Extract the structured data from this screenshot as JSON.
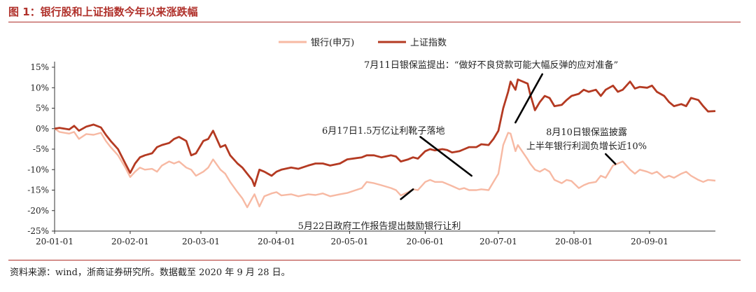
{
  "figure_title": "图 1：银行股和上证指数今年以来涨跌幅",
  "source_note": "资料来源：wind，浙商证券研究所。数据截至 2020 年 9 月 28 日。",
  "colors": {
    "bank": "#f7b9a3",
    "index": "#b43a22",
    "accent": "#b0312b"
  },
  "chart_data": {
    "type": "line",
    "title": "",
    "xlabel": "",
    "ylabel": "",
    "ylim": [
      -25,
      15
    ],
    "yticks": [
      15,
      10,
      5,
      0,
      -5,
      -10,
      -15,
      -20,
      -25
    ],
    "ytick_labels": [
      "15%",
      "10%",
      "5%",
      "0%",
      "-5%",
      "-10%",
      "-15%",
      "-20%",
      "-25%"
    ],
    "xticks": [
      "2020-01-01",
      "2020-02-01",
      "2020-03-01",
      "2020-04-01",
      "2020-05-01",
      "2020-06-01",
      "2020-07-01",
      "2020-08-01",
      "2020-09-01"
    ],
    "xtick_labels": [
      "20-01-01",
      "20-02-01",
      "20-03-01",
      "20-04-01",
      "20-05-01",
      "20-06-01",
      "20-07-01",
      "20-08-01",
      "20-09-01"
    ],
    "xlim": [
      "2020-01-01",
      "2020-09-28"
    ],
    "grid": false,
    "legend_position": "top-center",
    "series": [
      {
        "name": "银行(申万)",
        "points": [
          [
            "2020-01-01",
            0
          ],
          [
            "2020-01-03",
            -0.8
          ],
          [
            "2020-01-07",
            -1.2
          ],
          [
            "2020-01-09",
            -0.8
          ],
          [
            "2020-01-11",
            -2.5
          ],
          [
            "2020-01-14",
            -1.3
          ],
          [
            "2020-01-17",
            -1.5
          ],
          [
            "2020-01-20",
            -1.0
          ],
          [
            "2020-01-22",
            -3.0
          ],
          [
            "2020-01-24",
            -4.5
          ],
          [
            "2020-01-27",
            -6.5
          ],
          [
            "2020-01-30",
            -9.5
          ],
          [
            "2020-02-01",
            -11.8
          ],
          [
            "2020-02-03",
            -10.5
          ],
          [
            "2020-02-05",
            -9.5
          ],
          [
            "2020-02-07",
            -10.0
          ],
          [
            "2020-02-10",
            -9.8
          ],
          [
            "2020-02-12",
            -10.5
          ],
          [
            "2020-02-14",
            -9.0
          ],
          [
            "2020-02-17",
            -8.0
          ],
          [
            "2020-02-19",
            -8.5
          ],
          [
            "2020-02-21",
            -8.0
          ],
          [
            "2020-02-24",
            -9.5
          ],
          [
            "2020-02-26",
            -10.0
          ],
          [
            "2020-02-28",
            -11.5
          ],
          [
            "2020-03-02",
            -10.5
          ],
          [
            "2020-03-04",
            -9.5
          ],
          [
            "2020-03-06",
            -7.5
          ],
          [
            "2020-03-09",
            -10.0
          ],
          [
            "2020-03-11",
            -11.0
          ],
          [
            "2020-03-13",
            -13.0
          ],
          [
            "2020-03-16",
            -15.5
          ],
          [
            "2020-03-18",
            -17.0
          ],
          [
            "2020-03-20",
            -19.2
          ],
          [
            "2020-03-22",
            -17.0
          ],
          [
            "2020-03-23",
            -16.0
          ],
          [
            "2020-03-25",
            -19.0
          ],
          [
            "2020-03-27",
            -16.5
          ],
          [
            "2020-03-30",
            -15.8
          ],
          [
            "2020-04-01",
            -15.5
          ],
          [
            "2020-04-03",
            -16.3
          ],
          [
            "2020-04-07",
            -16.0
          ],
          [
            "2020-04-10",
            -16.5
          ],
          [
            "2020-04-14",
            -16.0
          ],
          [
            "2020-04-17",
            -16.2
          ],
          [
            "2020-04-20",
            -15.8
          ],
          [
            "2020-04-23",
            -16.5
          ],
          [
            "2020-04-27",
            -16.0
          ],
          [
            "2020-04-30",
            -15.7
          ],
          [
            "2020-05-06",
            -14.5
          ],
          [
            "2020-05-08",
            -13.0
          ],
          [
            "2020-05-11",
            -13.3
          ],
          [
            "2020-05-14",
            -13.8
          ],
          [
            "2020-05-18",
            -14.5
          ],
          [
            "2020-05-20",
            -15.0
          ],
          [
            "2020-05-22",
            -16.3
          ],
          [
            "2020-05-25",
            -15.5
          ],
          [
            "2020-05-27",
            -14.8
          ],
          [
            "2020-05-29",
            -15.0
          ],
          [
            "2020-06-01",
            -13.0
          ],
          [
            "2020-06-03",
            -12.5
          ],
          [
            "2020-06-05",
            -13.0
          ],
          [
            "2020-06-08",
            -13.0
          ],
          [
            "2020-06-10",
            -13.5
          ],
          [
            "2020-06-12",
            -14.0
          ],
          [
            "2020-06-15",
            -14.8
          ],
          [
            "2020-06-17",
            -14.5
          ],
          [
            "2020-06-19",
            -15.0
          ],
          [
            "2020-06-22",
            -15.0
          ],
          [
            "2020-06-24",
            -14.8
          ],
          [
            "2020-06-27",
            -15.0
          ],
          [
            "2020-06-29",
            -13.0
          ],
          [
            "2020-07-01",
            -11.0
          ],
          [
            "2020-07-03",
            -4.0
          ],
          [
            "2020-07-05",
            -1.0
          ],
          [
            "2020-07-06",
            -1.2
          ],
          [
            "2020-07-08",
            -5.5
          ],
          [
            "2020-07-09",
            -4.0
          ],
          [
            "2020-07-13",
            -7.5
          ],
          [
            "2020-07-14",
            -8.5
          ],
          [
            "2020-07-16",
            -10.0
          ],
          [
            "2020-07-18",
            -10.5
          ],
          [
            "2020-07-20",
            -9.8
          ],
          [
            "2020-07-22",
            -10.5
          ],
          [
            "2020-07-24",
            -12.5
          ],
          [
            "2020-07-27",
            -13.3
          ],
          [
            "2020-07-29",
            -12.5
          ],
          [
            "2020-07-31",
            -12.8
          ],
          [
            "2020-08-03",
            -14.5
          ],
          [
            "2020-08-05",
            -13.8
          ],
          [
            "2020-08-07",
            -13.3
          ],
          [
            "2020-08-10",
            -13.0
          ],
          [
            "2020-08-12",
            -11.5
          ],
          [
            "2020-08-14",
            -12.0
          ],
          [
            "2020-08-17",
            -9.0
          ],
          [
            "2020-08-19",
            -8.5
          ],
          [
            "2020-08-21",
            -8.0
          ],
          [
            "2020-08-24",
            -10.0
          ],
          [
            "2020-08-26",
            -11.0
          ],
          [
            "2020-08-28",
            -10.0
          ],
          [
            "2020-08-31",
            -10.5
          ],
          [
            "2020-09-02",
            -11.0
          ],
          [
            "2020-09-04",
            -10.5
          ],
          [
            "2020-09-07",
            -12.0
          ],
          [
            "2020-09-09",
            -11.5
          ],
          [
            "2020-09-11",
            -12.0
          ],
          [
            "2020-09-14",
            -11.0
          ],
          [
            "2020-09-16",
            -10.5
          ],
          [
            "2020-09-18",
            -11.5
          ],
          [
            "2020-09-21",
            -12.5
          ],
          [
            "2020-09-23",
            -13.0
          ],
          [
            "2020-09-25",
            -12.5
          ],
          [
            "2020-09-28",
            -12.7
          ]
        ]
      },
      {
        "name": "上证指数",
        "points": [
          [
            "2020-01-01",
            0
          ],
          [
            "2020-01-03",
            0.2
          ],
          [
            "2020-01-07",
            -0.2
          ],
          [
            "2020-01-09",
            0.7
          ],
          [
            "2020-01-11",
            -0.5
          ],
          [
            "2020-01-14",
            0.5
          ],
          [
            "2020-01-17",
            1.0
          ],
          [
            "2020-01-20",
            0.3
          ],
          [
            "2020-01-22",
            -1.5
          ],
          [
            "2020-01-24",
            -3.0
          ],
          [
            "2020-01-27",
            -5.0
          ],
          [
            "2020-01-30",
            -8.5
          ],
          [
            "2020-02-01",
            -10.8
          ],
          [
            "2020-02-03",
            -8.5
          ],
          [
            "2020-02-05",
            -7.0
          ],
          [
            "2020-02-07",
            -6.5
          ],
          [
            "2020-02-10",
            -6.0
          ],
          [
            "2020-02-12",
            -4.5
          ],
          [
            "2020-02-14",
            -4.0
          ],
          [
            "2020-02-17",
            -3.5
          ],
          [
            "2020-02-19",
            -2.5
          ],
          [
            "2020-02-21",
            -2.0
          ],
          [
            "2020-02-24",
            -3.0
          ],
          [
            "2020-02-26",
            -6.5
          ],
          [
            "2020-02-28",
            -6.0
          ],
          [
            "2020-03-02",
            -3.0
          ],
          [
            "2020-03-04",
            -2.5
          ],
          [
            "2020-03-06",
            -0.5
          ],
          [
            "2020-03-09",
            -4.5
          ],
          [
            "2020-03-11",
            -4.0
          ],
          [
            "2020-03-13",
            -6.5
          ],
          [
            "2020-03-16",
            -8.5
          ],
          [
            "2020-03-18",
            -9.5
          ],
          [
            "2020-03-20",
            -11.0
          ],
          [
            "2020-03-22",
            -12.5
          ],
          [
            "2020-03-23",
            -14.0
          ],
          [
            "2020-03-25",
            -10.0
          ],
          [
            "2020-03-27",
            -10.5
          ],
          [
            "2020-03-30",
            -11.5
          ],
          [
            "2020-04-01",
            -10.5
          ],
          [
            "2020-04-03",
            -10.0
          ],
          [
            "2020-04-07",
            -9.5
          ],
          [
            "2020-04-10",
            -9.8
          ],
          [
            "2020-04-14",
            -9.0
          ],
          [
            "2020-04-17",
            -8.5
          ],
          [
            "2020-04-20",
            -8.5
          ],
          [
            "2020-04-23",
            -9.0
          ],
          [
            "2020-04-27",
            -8.5
          ],
          [
            "2020-04-30",
            -7.5
          ],
          [
            "2020-05-06",
            -7.0
          ],
          [
            "2020-05-08",
            -6.5
          ],
          [
            "2020-05-11",
            -6.5
          ],
          [
            "2020-05-14",
            -7.0
          ],
          [
            "2020-05-18",
            -6.5
          ],
          [
            "2020-05-20",
            -6.8
          ],
          [
            "2020-05-22",
            -8.0
          ],
          [
            "2020-05-25",
            -7.5
          ],
          [
            "2020-05-27",
            -7.0
          ],
          [
            "2020-05-29",
            -7.3
          ],
          [
            "2020-06-01",
            -5.5
          ],
          [
            "2020-06-03",
            -5.0
          ],
          [
            "2020-06-05",
            -5.3
          ],
          [
            "2020-06-08",
            -5.0
          ],
          [
            "2020-06-10",
            -5.2
          ],
          [
            "2020-06-12",
            -5.8
          ],
          [
            "2020-06-15",
            -5.5
          ],
          [
            "2020-06-17",
            -5.0
          ],
          [
            "2020-06-19",
            -4.5
          ],
          [
            "2020-06-22",
            -4.5
          ],
          [
            "2020-06-24",
            -3.8
          ],
          [
            "2020-06-27",
            -4.0
          ],
          [
            "2020-06-29",
            -2.5
          ],
          [
            "2020-07-01",
            -0.5
          ],
          [
            "2020-07-03",
            5.0
          ],
          [
            "2020-07-05",
            9.0
          ],
          [
            "2020-07-06",
            11.5
          ],
          [
            "2020-07-08",
            9.5
          ],
          [
            "2020-07-09",
            12.0
          ],
          [
            "2020-07-13",
            11.0
          ],
          [
            "2020-07-14",
            8.5
          ],
          [
            "2020-07-16",
            4.5
          ],
          [
            "2020-07-18",
            6.5
          ],
          [
            "2020-07-20",
            8.0
          ],
          [
            "2020-07-22",
            7.5
          ],
          [
            "2020-07-24",
            5.5
          ],
          [
            "2020-07-27",
            5.8
          ],
          [
            "2020-07-29",
            7.0
          ],
          [
            "2020-07-31",
            8.0
          ],
          [
            "2020-08-03",
            8.5
          ],
          [
            "2020-08-05",
            9.5
          ],
          [
            "2020-08-07",
            9.0
          ],
          [
            "2020-08-10",
            9.5
          ],
          [
            "2020-08-12",
            8.0
          ],
          [
            "2020-08-14",
            9.5
          ],
          [
            "2020-08-17",
            10.5
          ],
          [
            "2020-08-19",
            9.0
          ],
          [
            "2020-08-21",
            9.5
          ],
          [
            "2020-08-24",
            11.5
          ],
          [
            "2020-08-26",
            9.8
          ],
          [
            "2020-08-28",
            10.2
          ],
          [
            "2020-08-31",
            10.0
          ],
          [
            "2020-09-02",
            10.5
          ],
          [
            "2020-09-04",
            9.0
          ],
          [
            "2020-09-07",
            8.0
          ],
          [
            "2020-09-09",
            6.5
          ],
          [
            "2020-09-11",
            5.5
          ],
          [
            "2020-09-14",
            6.0
          ],
          [
            "2020-09-16",
            5.5
          ],
          [
            "2020-09-18",
            7.5
          ],
          [
            "2020-09-21",
            7.0
          ],
          [
            "2020-09-23",
            5.5
          ],
          [
            "2020-09-25",
            4.2
          ],
          [
            "2020-09-28",
            4.3
          ]
        ]
      }
    ],
    "annotations": [
      {
        "text": "7月11日银保监提出：“做好不良贷款可能大幅反弹的应对准备”",
        "lines": [
          "7月11日银保监提出：“做好不良贷款可能大幅反弹的应对准备”"
        ],
        "anchor": [
          "2020-07-08",
          1.5
        ],
        "from": [
          "2020-07-19",
          13.3
        ]
      },
      {
        "text": "6月17日1.5万亿让利靴子落地",
        "lines": [
          "6月17日1.5万亿让利靴子落地"
        ],
        "anchor": [
          "2020-06-20",
          -11.5
        ],
        "from": [
          "2020-05-30",
          -2.0
        ]
      },
      {
        "text": "8月10日银保监披露 上半年银行利润负增长近10%",
        "lines": [
          "8月10日银保监披露",
          "上半年银行利润负增长近10%"
        ],
        "anchor": [
          "2020-08-18",
          -8.6
        ],
        "from": [
          "2020-08-14",
          -6.2
        ]
      },
      {
        "text": "5月22日政府工作报告提出鼓励银行让利",
        "lines": [
          "5月22日政府工作报告提出鼓励银行让利"
        ],
        "anchor": [
          "2020-05-27",
          -14.8
        ],
        "from": [
          "2020-05-22",
          -17.2
        ]
      }
    ]
  }
}
